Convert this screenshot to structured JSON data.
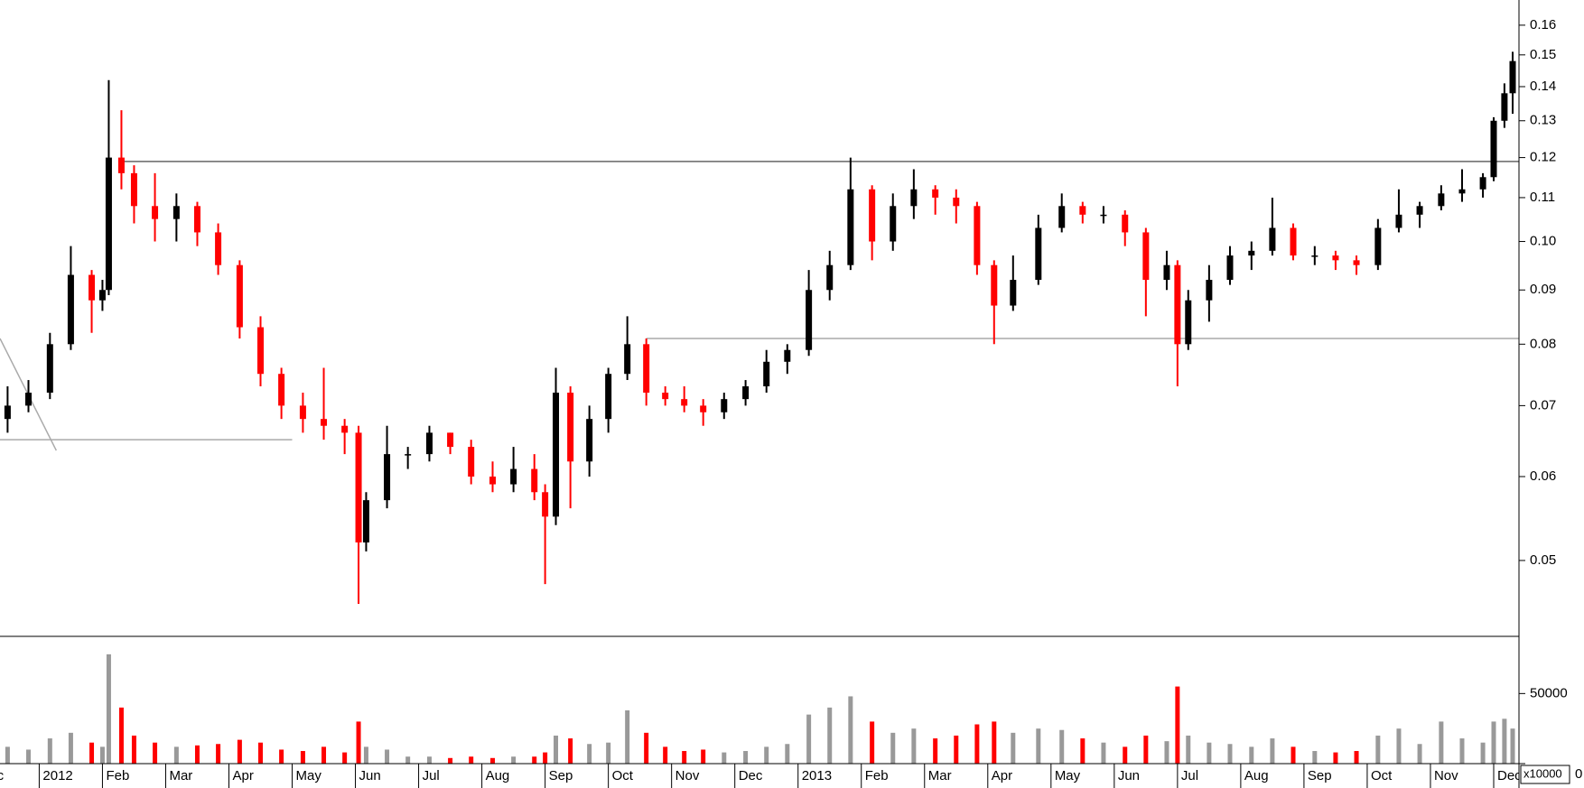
{
  "chart_data": [
    {
      "type": "candlestick",
      "x": [
        -0.5,
        -0.17,
        0.17,
        0.5,
        0.83,
        1.0,
        1.1,
        1.3,
        1.5,
        1.83,
        2.17,
        2.5,
        2.83,
        3.17,
        3.5,
        3.83,
        4.17,
        4.5,
        4.83,
        5.05,
        5.17,
        5.5,
        5.83,
        6.17,
        6.5,
        6.83,
        7.17,
        7.5,
        7.83,
        8.0,
        8.17,
        8.4,
        8.7,
        9.0,
        9.3,
        9.6,
        9.9,
        10.2,
        10.5,
        10.83,
        11.17,
        11.5,
        11.83,
        12.17,
        12.5,
        12.83,
        13.17,
        13.5,
        13.83,
        14.17,
        14.5,
        14.83,
        15.1,
        15.4,
        15.8,
        16.17,
        16.5,
        16.83,
        17.17,
        17.5,
        17.83,
        18.0,
        18.17,
        18.5,
        18.83,
        19.17,
        19.5,
        19.83,
        20.17,
        20.5,
        20.83,
        21.17,
        21.5,
        21.83,
        22.17,
        22.5,
        22.83,
        23.0,
        23.17,
        23.3
      ],
      "open": [
        0.068,
        0.07,
        0.072,
        0.08,
        0.093,
        0.088,
        0.09,
        0.12,
        0.116,
        0.108,
        0.105,
        0.108,
        0.102,
        0.095,
        0.083,
        0.075,
        0.07,
        0.068,
        0.067,
        0.066,
        0.052,
        0.057,
        0.063,
        0.063,
        0.066,
        0.064,
        0.06,
        0.059,
        0.061,
        0.058,
        0.055,
        0.072,
        0.062,
        0.068,
        0.075,
        0.08,
        0.072,
        0.071,
        0.07,
        0.069,
        0.071,
        0.073,
        0.077,
        0.079,
        0.09,
        0.095,
        0.112,
        0.1,
        0.108,
        0.112,
        0.11,
        0.108,
        0.095,
        0.087,
        0.092,
        0.103,
        0.108,
        0.106,
        0.106,
        0.102,
        0.092,
        0.095,
        0.08,
        0.088,
        0.092,
        0.097,
        0.098,
        0.103,
        0.097,
        0.097,
        0.096,
        0.095,
        0.103,
        0.106,
        0.108,
        0.111,
        0.112,
        0.115,
        0.13,
        0.138
      ],
      "high": [
        0.073,
        0.074,
        0.082,
        0.099,
        0.094,
        0.092,
        0.142,
        0.133,
        0.118,
        0.116,
        0.111,
        0.109,
        0.104,
        0.096,
        0.085,
        0.076,
        0.072,
        0.076,
        0.068,
        0.067,
        0.058,
        0.067,
        0.064,
        0.067,
        0.066,
        0.065,
        0.062,
        0.064,
        0.063,
        0.059,
        0.076,
        0.073,
        0.07,
        0.076,
        0.085,
        0.081,
        0.073,
        0.073,
        0.071,
        0.072,
        0.074,
        0.079,
        0.08,
        0.094,
        0.098,
        0.12,
        0.113,
        0.111,
        0.117,
        0.113,
        0.112,
        0.109,
        0.096,
        0.097,
        0.106,
        0.111,
        0.109,
        0.108,
        0.107,
        0.103,
        0.098,
        0.096,
        0.09,
        0.095,
        0.099,
        0.1,
        0.11,
        0.104,
        0.099,
        0.098,
        0.097,
        0.105,
        0.112,
        0.109,
        0.113,
        0.117,
        0.116,
        0.131,
        0.141,
        0.151
      ],
      "low": [
        0.066,
        0.069,
        0.071,
        0.079,
        0.082,
        0.086,
        0.089,
        0.112,
        0.104,
        0.1,
        0.1,
        0.099,
        0.093,
        0.081,
        0.073,
        0.068,
        0.066,
        0.065,
        0.063,
        0.0455,
        0.051,
        0.056,
        0.061,
        0.062,
        0.063,
        0.059,
        0.058,
        0.058,
        0.057,
        0.0475,
        0.054,
        0.056,
        0.06,
        0.066,
        0.074,
        0.07,
        0.07,
        0.069,
        0.067,
        0.068,
        0.07,
        0.072,
        0.075,
        0.078,
        0.088,
        0.094,
        0.096,
        0.098,
        0.105,
        0.106,
        0.104,
        0.093,
        0.08,
        0.086,
        0.091,
        0.102,
        0.104,
        0.104,
        0.099,
        0.085,
        0.09,
        0.073,
        0.079,
        0.084,
        0.091,
        0.094,
        0.097,
        0.096,
        0.095,
        0.094,
        0.093,
        0.094,
        0.102,
        0.103,
        0.107,
        0.109,
        0.11,
        0.114,
        0.128,
        0.132
      ],
      "close": [
        0.07,
        0.072,
        0.08,
        0.093,
        0.088,
        0.09,
        0.12,
        0.116,
        0.108,
        0.105,
        0.108,
        0.102,
        0.095,
        0.083,
        0.075,
        0.07,
        0.068,
        0.067,
        0.066,
        0.052,
        0.057,
        0.063,
        0.063,
        0.066,
        0.064,
        0.06,
        0.059,
        0.061,
        0.058,
        0.055,
        0.072,
        0.062,
        0.068,
        0.075,
        0.08,
        0.072,
        0.071,
        0.07,
        0.069,
        0.071,
        0.073,
        0.077,
        0.079,
        0.09,
        0.095,
        0.112,
        0.1,
        0.108,
        0.112,
        0.11,
        0.108,
        0.095,
        0.087,
        0.092,
        0.103,
        0.108,
        0.106,
        0.106,
        0.102,
        0.092,
        0.095,
        0.08,
        0.088,
        0.092,
        0.097,
        0.098,
        0.103,
        0.097,
        0.097,
        0.096,
        0.095,
        0.103,
        0.106,
        0.108,
        0.111,
        0.112,
        0.115,
        0.13,
        0.138,
        0.148
      ],
      "up_color": "#000000",
      "down_color": "#ff0000",
      "log_scale": true,
      "xlim": [
        -0.62,
        23.4
      ],
      "ylim": [
        0.0424,
        0.169
      ],
      "yticks": [
        0.05,
        0.06,
        0.07,
        0.08,
        0.09,
        {
          "value": 0.1,
          "label": "0.10"
        },
        0.11,
        0.12,
        0.13,
        0.14,
        0.15,
        0.16
      ],
      "xticks": [
        {
          "value": -1,
          "label": "Dec"
        },
        {
          "value": 0,
          "label": "2012"
        },
        {
          "value": 1,
          "label": "Feb"
        },
        {
          "value": 2,
          "label": "Mar"
        },
        {
          "value": 3,
          "label": "Apr"
        },
        {
          "value": 4,
          "label": "May"
        },
        {
          "value": 5,
          "label": "Jun"
        },
        {
          "value": 6,
          "label": "Jul"
        },
        {
          "value": 7,
          "label": "Aug"
        },
        {
          "value": 8,
          "label": "Sep"
        },
        {
          "value": 9,
          "label": "Oct"
        },
        {
          "value": 10,
          "label": "Nov"
        },
        {
          "value": 11,
          "label": "Dec"
        },
        {
          "value": 12,
          "label": "2013"
        },
        {
          "value": 13,
          "label": "Feb"
        },
        {
          "value": 14,
          "label": "Mar"
        },
        {
          "value": 15,
          "label": "Apr"
        },
        {
          "value": 16,
          "label": "May"
        },
        {
          "value": 17,
          "label": "Jun"
        },
        {
          "value": 18,
          "label": "Jul"
        },
        {
          "value": 19,
          "label": "Aug"
        },
        {
          "value": 20,
          "label": "Sep"
        },
        {
          "value": 21,
          "label": "Oct"
        },
        {
          "value": 22,
          "label": "Nov"
        },
        {
          "value": 23,
          "label": "Dec"
        }
      ],
      "reference_lines": [
        {
          "x": [
            1.25,
            23.4
          ],
          "y": [
            0.119,
            0.119
          ],
          "color": "#666666"
        },
        {
          "x": [
            9.6,
            23.4
          ],
          "y": [
            0.081,
            0.081
          ],
          "color": "#aaaaaa"
        },
        {
          "x": [
            -0.62,
            4.0
          ],
          "y": [
            0.065,
            0.065
          ],
          "color": "#aaaaaa"
        },
        {
          "x": [
            -0.62,
            0.27
          ],
          "y": [
            0.081,
            0.0635
          ],
          "color": "#aaaaaa"
        }
      ]
    },
    {
      "type": "bar",
      "values": [
        12000,
        10000,
        18000,
        22000,
        15000,
        12000,
        78000,
        40000,
        20000,
        15000,
        12000,
        13000,
        14000,
        17000,
        15000,
        10000,
        9000,
        12000,
        8000,
        30000,
        12000,
        10000,
        5000,
        5000,
        4000,
        5000,
        4000,
        5000,
        5000,
        8000,
        20000,
        18000,
        14000,
        15000,
        38000,
        22000,
        12000,
        9000,
        10000,
        8000,
        9000,
        12000,
        14000,
        35000,
        40000,
        48000,
        30000,
        22000,
        25000,
        18000,
        20000,
        28000,
        30000,
        22000,
        25000,
        24000,
        18000,
        15000,
        12000,
        20000,
        16000,
        55000,
        20000,
        15000,
        14000,
        12000,
        18000,
        12000,
        9000,
        8000,
        9000,
        20000,
        25000,
        14000,
        30000,
        18000,
        15000,
        30000,
        32000,
        25000
      ],
      "up_color": "#999999",
      "down_color": "#ff0000",
      "ylim": [
        0,
        89500
      ],
      "yticks": [
        0,
        50000
      ],
      "unit_label": "x10000"
    }
  ]
}
